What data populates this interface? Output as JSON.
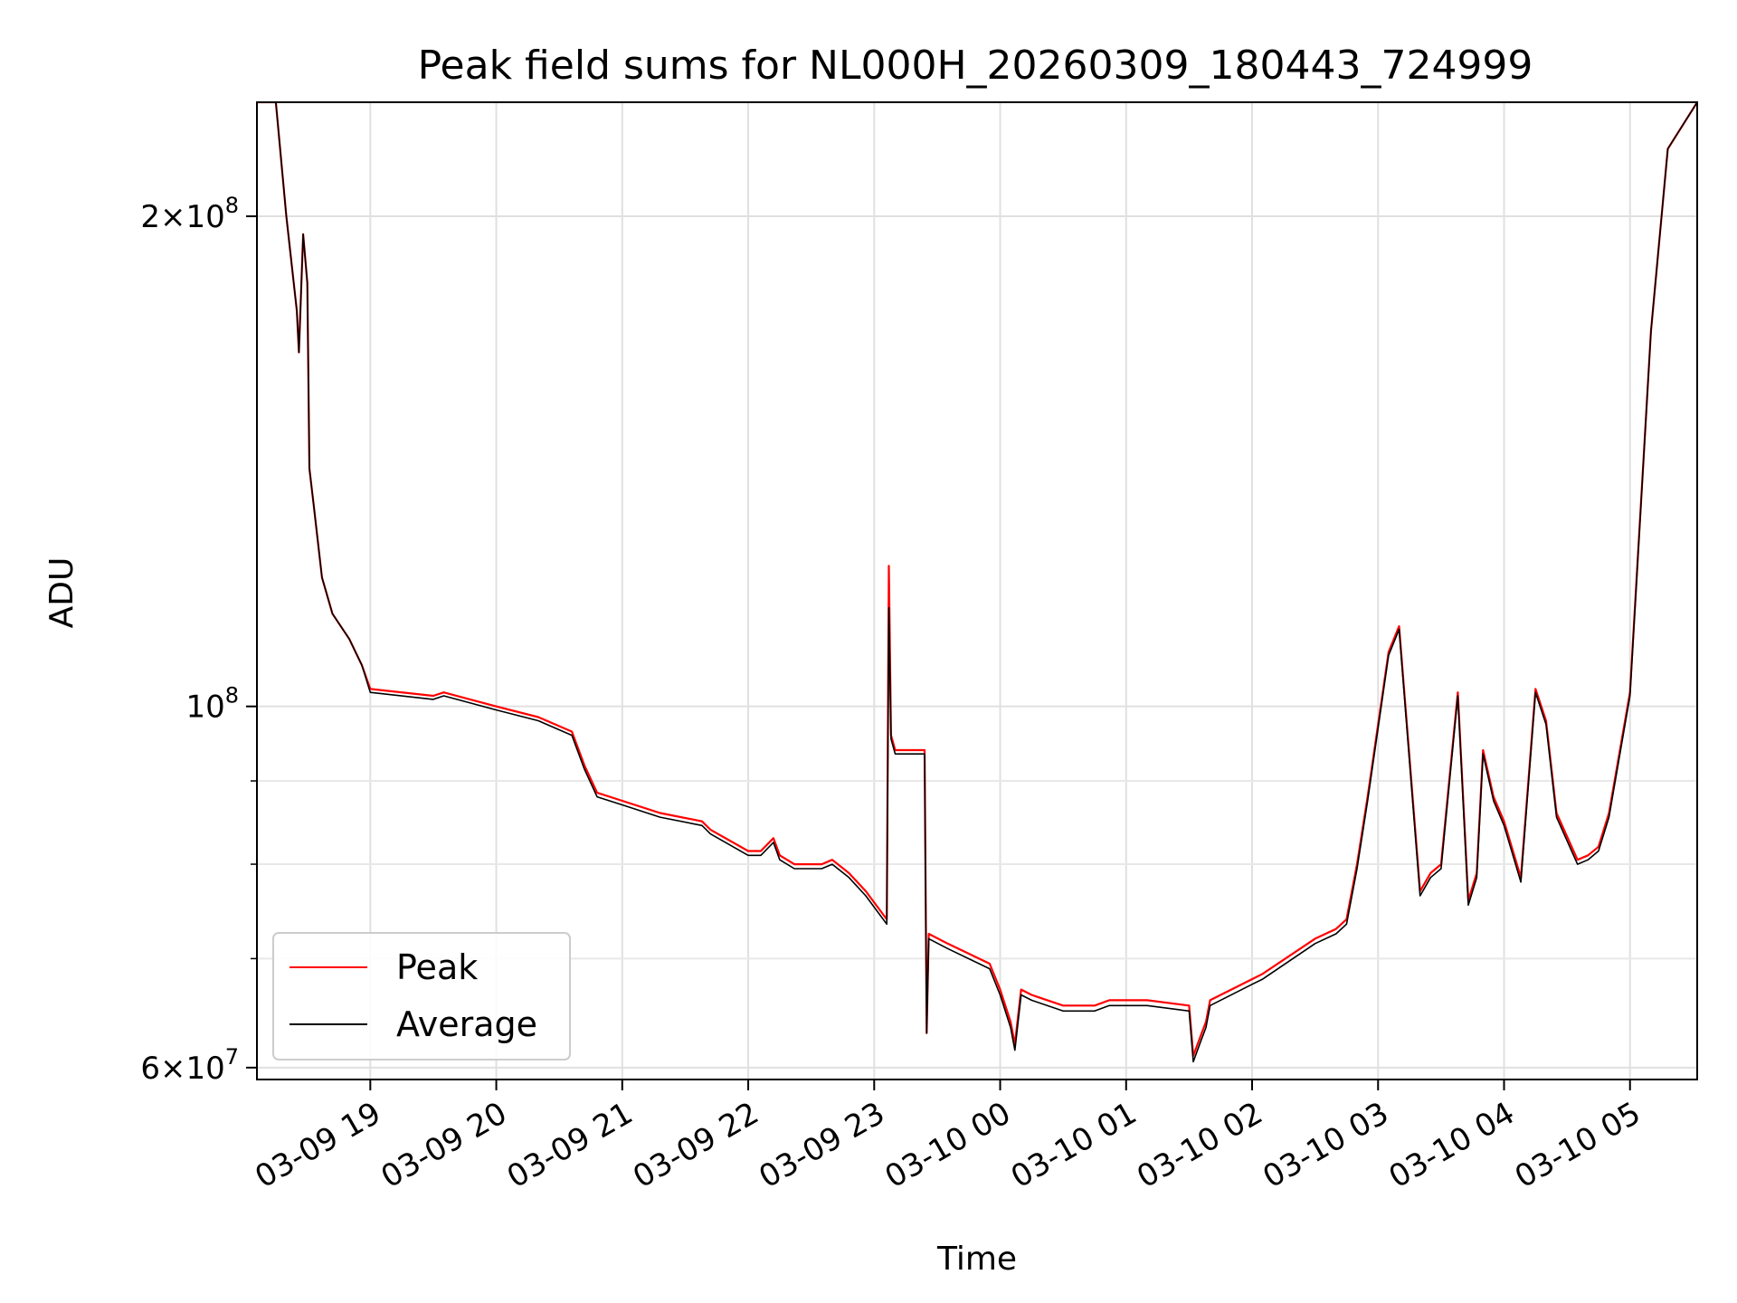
{
  "chart_data": {
    "type": "line",
    "title": "Peak field sums for NL000H_20260309_180443_724999",
    "xlabel": "Time",
    "ylabel": "ADU",
    "y_scale": "log",
    "ylim": [
      59000000,
      235000000
    ],
    "xlim": [
      "2026-03-09 18:06",
      "2026-03-10 05:32"
    ],
    "grid": true,
    "legend_position": "lower-left",
    "x_ticks": [
      "03-09 19",
      "03-09 20",
      "03-09 21",
      "03-09 22",
      "03-09 23",
      "03-10 00",
      "03-10 01",
      "03-10 02",
      "03-10 03",
      "03-10 04",
      "03-10 05"
    ],
    "x_tick_times": [
      "2026-03-09 19:00",
      "2026-03-09 20:00",
      "2026-03-09 21:00",
      "2026-03-09 22:00",
      "2026-03-09 23:00",
      "2026-03-10 00:00",
      "2026-03-10 01:00",
      "2026-03-10 02:00",
      "2026-03-10 03:00",
      "2026-03-10 04:00",
      "2026-03-10 05:00"
    ],
    "y_ticks": [
      {
        "value": 60000000,
        "mantissa": "6",
        "exp": "7"
      },
      {
        "value": 100000000,
        "mantissa": "",
        "exp": "8"
      },
      {
        "value": 200000000,
        "mantissa": "2",
        "exp": "8"
      }
    ],
    "y_minor_ticks": [
      70000000,
      80000000,
      90000000
    ],
    "series": [
      {
        "name": "Peak",
        "color": "#ff0000"
      },
      {
        "name": "Average",
        "color": "#000000"
      }
    ],
    "x": [
      "2026-03-09 18:06",
      "2026-03-09 18:15",
      "2026-03-09 18:20",
      "2026-03-09 18:25",
      "2026-03-09 18:26",
      "2026-03-09 18:28",
      "2026-03-09 18:30",
      "2026-03-09 18:31",
      "2026-03-09 18:33",
      "2026-03-09 18:37",
      "2026-03-09 18:42",
      "2026-03-09 18:50",
      "2026-03-09 18:56",
      "2026-03-09 19:00",
      "2026-03-09 19:30",
      "2026-03-09 19:35",
      "2026-03-09 20:00",
      "2026-03-09 20:20",
      "2026-03-09 20:36",
      "2026-03-09 20:42",
      "2026-03-09 20:48",
      "2026-03-09 21:00",
      "2026-03-09 21:18",
      "2026-03-09 21:38",
      "2026-03-09 21:42",
      "2026-03-09 22:00",
      "2026-03-09 22:06",
      "2026-03-09 22:12",
      "2026-03-09 22:15",
      "2026-03-09 22:22",
      "2026-03-09 22:35",
      "2026-03-09 22:40",
      "2026-03-09 22:48",
      "2026-03-09 22:56",
      "2026-03-09 23:06",
      "2026-03-09 23:07",
      "2026-03-09 23:08",
      "2026-03-09 23:10",
      "2026-03-09 23:24",
      "2026-03-09 23:25",
      "2026-03-09 23:26",
      "2026-03-09 23:35",
      "2026-03-09 23:55",
      "2026-03-10 00:00",
      "2026-03-10 00:05",
      "2026-03-10 00:07",
      "2026-03-10 00:10",
      "2026-03-10 00:15",
      "2026-03-10 00:30",
      "2026-03-10 00:45",
      "2026-03-10 00:52",
      "2026-03-10 01:10",
      "2026-03-10 01:30",
      "2026-03-10 01:32",
      "2026-03-10 01:36",
      "2026-03-10 01:38",
      "2026-03-10 01:40",
      "2026-03-10 02:00",
      "2026-03-10 02:05",
      "2026-03-10 02:30",
      "2026-03-10 02:40",
      "2026-03-10 02:45",
      "2026-03-10 02:50",
      "2026-03-10 02:55",
      "2026-03-10 03:05",
      "2026-03-10 03:10",
      "2026-03-10 03:20",
      "2026-03-10 03:25",
      "2026-03-10 03:30",
      "2026-03-10 03:38",
      "2026-03-10 03:43",
      "2026-03-10 03:47",
      "2026-03-10 03:50",
      "2026-03-10 03:55",
      "2026-03-10 04:00",
      "2026-03-10 04:08",
      "2026-03-10 04:15",
      "2026-03-10 04:20",
      "2026-03-10 04:25",
      "2026-03-10 04:35",
      "2026-03-10 04:40",
      "2026-03-10 04:45",
      "2026-03-10 04:50",
      "2026-03-10 05:00",
      "2026-03-10 05:10",
      "2026-03-10 05:18",
      "2026-03-10 05:32"
    ],
    "peak": [
      235000000,
      235000000,
      200000000,
      175000000,
      165000000,
      195000000,
      182000000,
      140000000,
      133000000,
      120000000,
      114000000,
      110000000,
      106000000,
      102500000,
      101500000,
      102000000,
      100000000,
      98500000,
      96500000,
      92000000,
      88500000,
      87500000,
      86000000,
      85000000,
      84000000,
      81500000,
      81500000,
      83000000,
      81000000,
      80000000,
      80000000,
      80500000,
      79000000,
      77000000,
      74000000,
      122000000,
      96000000,
      94000000,
      94000000,
      63000000,
      72500000,
      71500000,
      69500000,
      67000000,
      64000000,
      62000000,
      67000000,
      66500000,
      65500000,
      65500000,
      66000000,
      66000000,
      65500000,
      61000000,
      63000000,
      64000000,
      66000000,
      68000000,
      68500000,
      72000000,
      73000000,
      74000000,
      80000000,
      88000000,
      108000000,
      112000000,
      77000000,
      79000000,
      80000000,
      102000000,
      76000000,
      79000000,
      94000000,
      88000000,
      85000000,
      78500000,
      102500000,
      98000000,
      86000000,
      80500000,
      81000000,
      82000000,
      86000000,
      102000000,
      170000000,
      220000000,
      235000000
    ],
    "average": [
      235000000,
      235000000,
      200000000,
      175000000,
      165000000,
      195000000,
      182000000,
      140000000,
      133000000,
      120000000,
      114000000,
      110000000,
      106000000,
      102000000,
      101000000,
      101500000,
      99500000,
      98000000,
      96000000,
      91500000,
      88000000,
      87000000,
      85500000,
      84500000,
      83500000,
      81000000,
      81000000,
      82500000,
      80500000,
      79500000,
      79500000,
      80000000,
      78500000,
      76500000,
      73500000,
      115000000,
      95500000,
      93500000,
      93500000,
      63000000,
      72000000,
      71000000,
      69000000,
      66500000,
      63500000,
      61500000,
      66500000,
      66000000,
      65000000,
      65000000,
      65500000,
      65500000,
      65000000,
      60500000,
      62500000,
      63500000,
      65500000,
      67500000,
      68000000,
      71500000,
      72500000,
      73500000,
      79500000,
      87500000,
      107500000,
      111500000,
      76500000,
      78500000,
      79500000,
      101500000,
      75500000,
      78500000,
      93500000,
      87500000,
      84500000,
      78000000,
      102000000,
      97500000,
      85500000,
      80000000,
      80500000,
      81500000,
      85500000,
      101500000,
      170000000,
      220000000,
      235000000
    ]
  }
}
